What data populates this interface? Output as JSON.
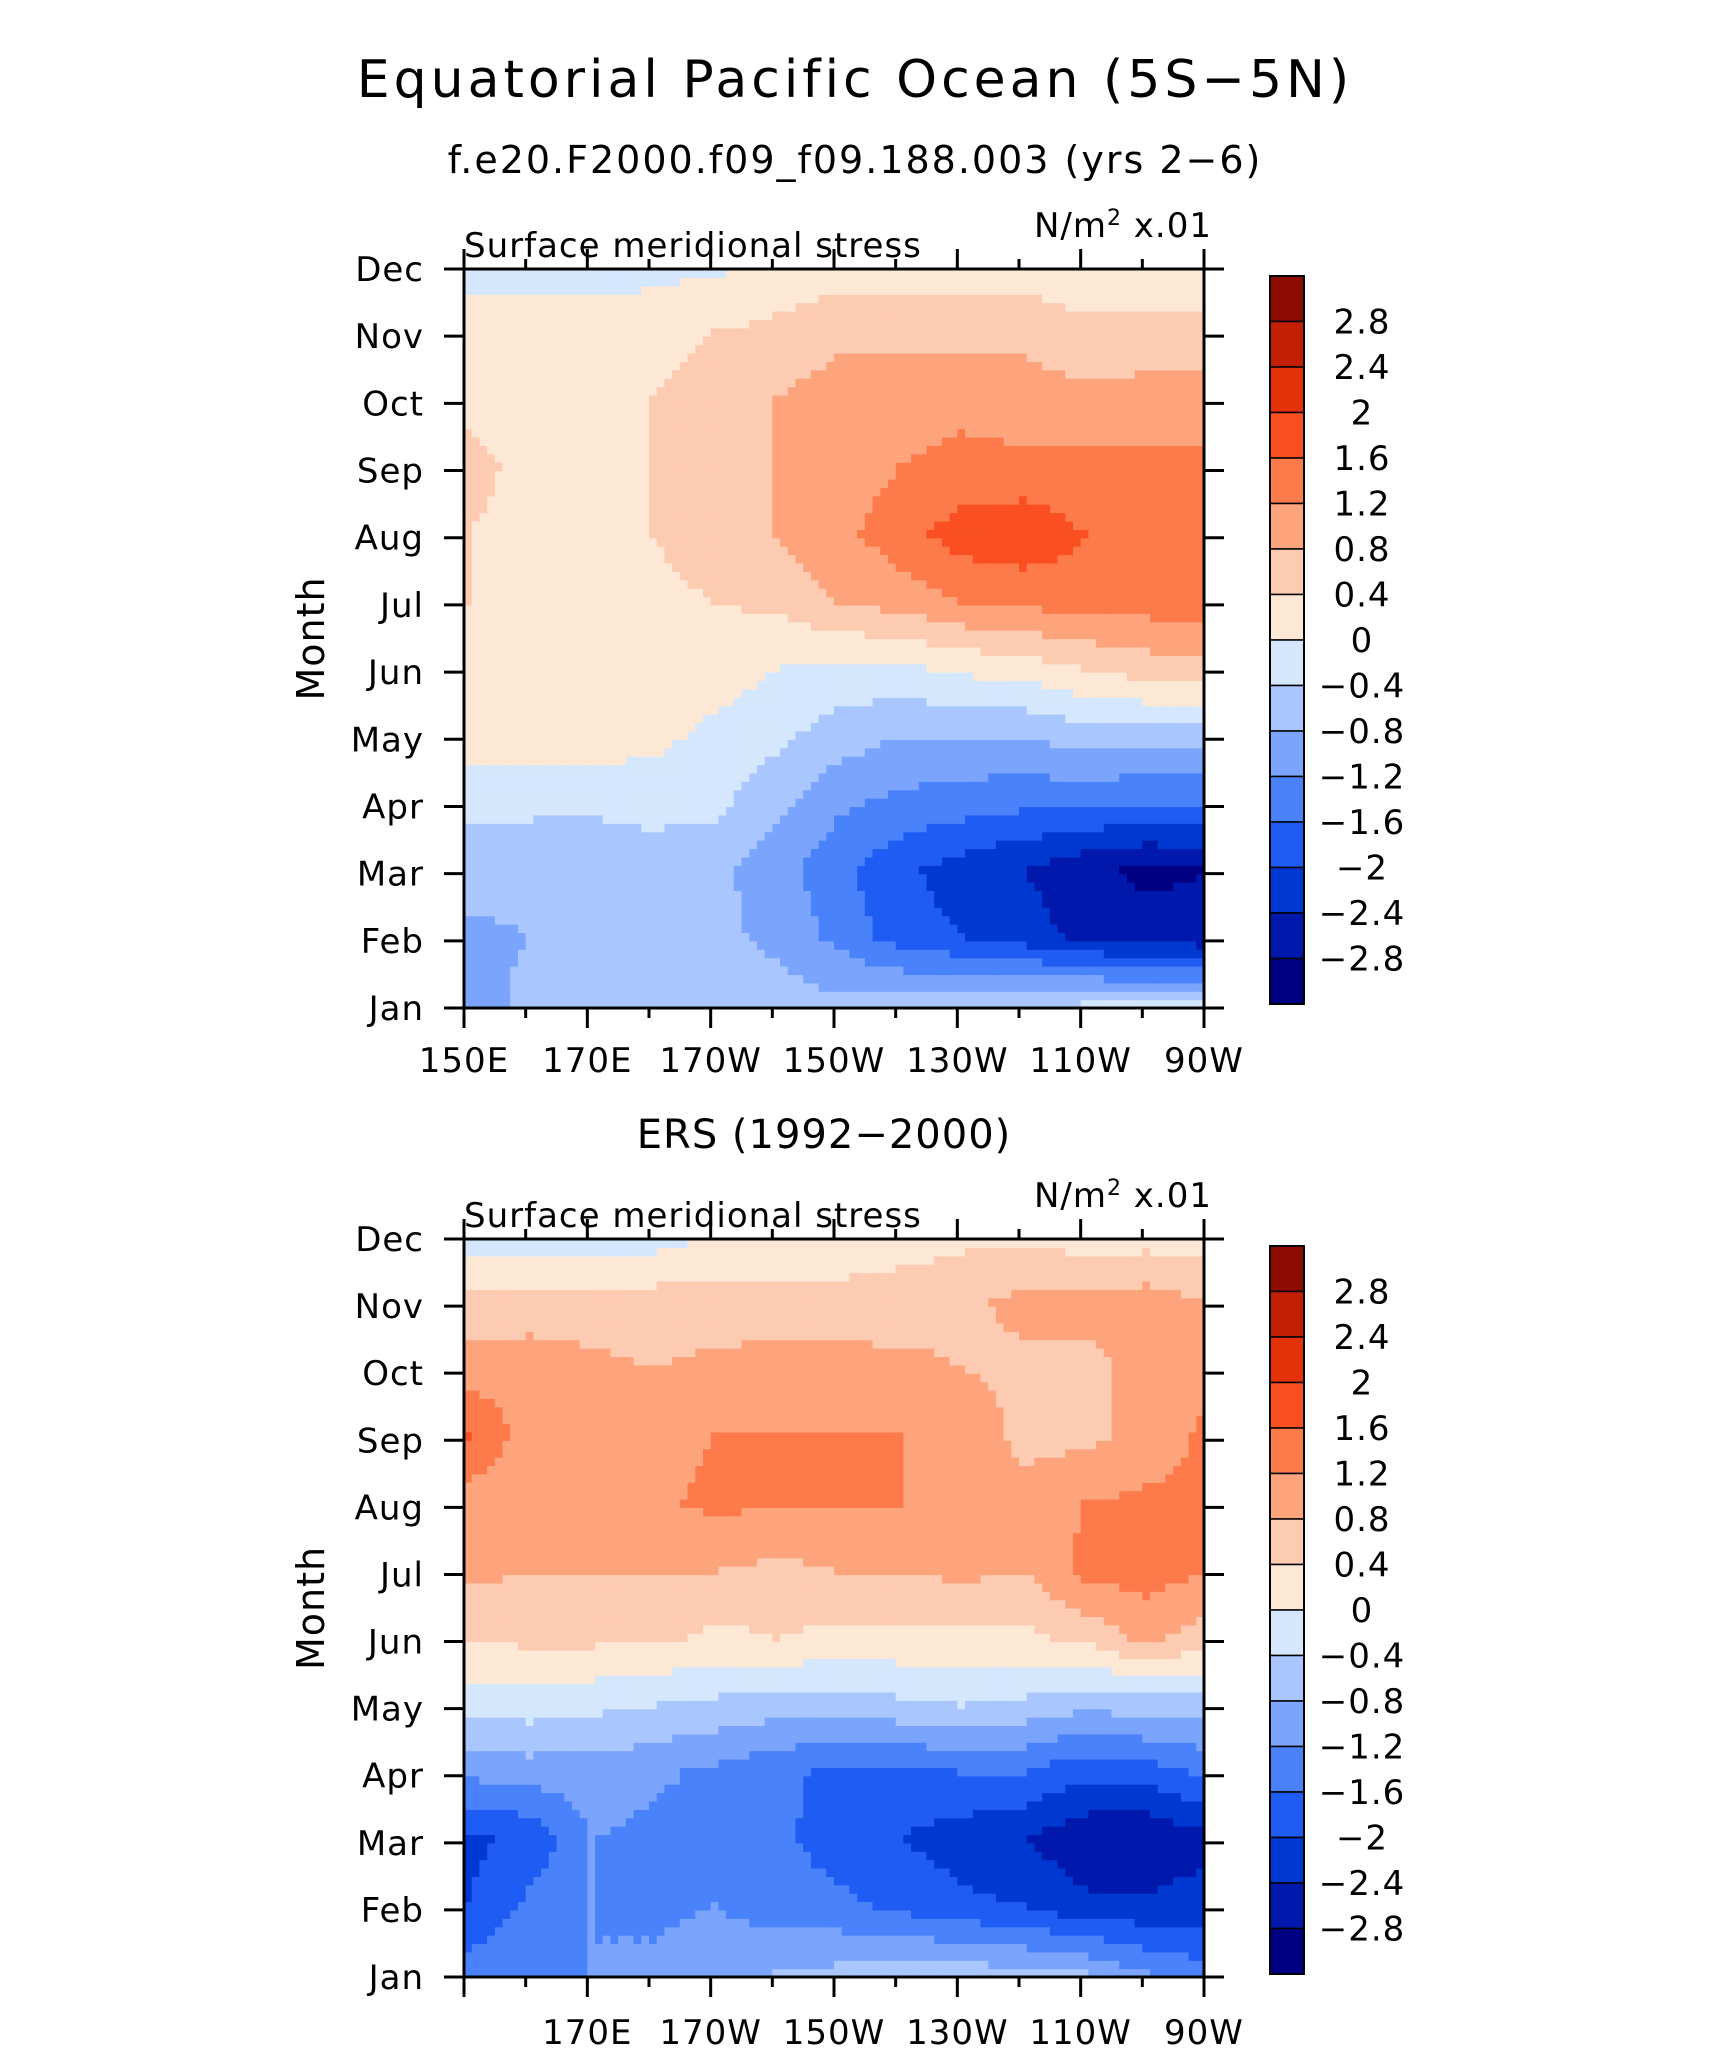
{
  "title": "Equatorial Pacific Ocean (5S−5N)",
  "subtitle": "f.e20.F2000.f09_f09.188.003 (yrs 2−6)",
  "colors": [
    "#000083",
    "#0019ac",
    "#0039d2",
    "#1f5cf4",
    "#4a82fb",
    "#7ba4fd",
    "#a9c6fe",
    "#d4e7fd",
    "#fde8d6",
    "#fdcbb1",
    "#fda47d",
    "#fd7a4b",
    "#fa4f20",
    "#e3320a",
    "#c21f05",
    "#8e0b01"
  ],
  "chart_data": [
    {
      "type": "heatmap",
      "title": "f.e20.F2000.f09_f09.188.003 (yrs 2−6)",
      "variable": "Surface meridional stress",
      "units_label": "N/m",
      "units_power": "2",
      "units_scale": "x.01",
      "ylabel": "Month",
      "months": [
        "Jan",
        "Feb",
        "Mar",
        "Apr",
        "May",
        "Jun",
        "Jul",
        "Aug",
        "Sep",
        "Oct",
        "Nov",
        "Dec"
      ],
      "x_ticks": [
        "150E",
        "170E",
        "170W",
        "150W",
        "130W",
        "110W",
        "90W"
      ],
      "x_range": [
        150,
        270
      ],
      "levels": [
        -2.8,
        -2.4,
        -2,
        -1.6,
        -1.2,
        -0.8,
        -0.4,
        0,
        0.4,
        0.8,
        1.2,
        1.6,
        2,
        2.4,
        2.8
      ],
      "x": [
        150,
        160,
        170,
        180,
        190,
        200,
        210,
        220,
        230,
        240,
        250,
        260,
        270
      ],
      "values": [
        [
          -1.0,
          -0.7,
          -0.6,
          -0.6,
          -0.6,
          -0.6,
          -0.7,
          -0.6,
          -0.5,
          -0.5,
          -0.4,
          -0.4,
          -0.4
        ],
        [
          -0.9,
          -0.8,
          -0.7,
          -0.7,
          -0.7,
          -0.9,
          -1.3,
          -1.8,
          -2.0,
          -2.2,
          -2.5,
          -2.6,
          -2.7
        ],
        [
          -0.6,
          -0.7,
          -0.8,
          -0.7,
          -0.7,
          -1.0,
          -1.5,
          -1.9,
          -2.2,
          -2.4,
          -2.7,
          -2.9,
          -2.8
        ],
        [
          -0.3,
          -0.3,
          -0.3,
          -0.2,
          -0.3,
          -0.7,
          -1.1,
          -1.3,
          -1.4,
          -1.5,
          -1.5,
          -1.6,
          -1.6
        ],
        [
          0.2,
          0.2,
          0.2,
          0.1,
          -0.1,
          -0.3,
          -0.6,
          -0.8,
          -0.8,
          -0.8,
          -0.6,
          -0.6,
          -0.6
        ],
        [
          0.3,
          0.3,
          0.3,
          0.3,
          0.2,
          0.0,
          -0.1,
          -0.1,
          0.1,
          0.2,
          0.4,
          0.6,
          0.7
        ],
        [
          0.4,
          0.3,
          0.3,
          0.3,
          0.4,
          0.5,
          0.8,
          1.0,
          1.2,
          1.3,
          1.4,
          1.4,
          1.5
        ],
        [
          0.4,
          0.3,
          0.3,
          0.4,
          0.6,
          0.8,
          1.1,
          1.4,
          1.8,
          1.9,
          1.6,
          1.4,
          1.4
        ],
        [
          0.5,
          0.3,
          0.3,
          0.4,
          0.6,
          0.8,
          1.0,
          1.2,
          1.3,
          1.3,
          1.3,
          1.3,
          1.3
        ],
        [
          0.3,
          0.3,
          0.3,
          0.4,
          0.6,
          0.8,
          1.0,
          1.0,
          1.1,
          1.0,
          0.9,
          1.0,
          1.0
        ],
        [
          0.3,
          0.3,
          0.2,
          0.2,
          0.4,
          0.5,
          0.7,
          0.7,
          0.7,
          0.7,
          0.5,
          0.5,
          0.5
        ],
        [
          -0.2,
          -0.2,
          -0.2,
          -0.1,
          -0.1,
          0.1,
          0.2,
          0.2,
          0.2,
          0.2,
          0.1,
          0.1,
          0.2
        ]
      ]
    },
    {
      "type": "heatmap",
      "title": "ERS (1992−2000)",
      "variable": "Surface meridional stress",
      "units_label": "N/m",
      "units_power": "2",
      "units_scale": "x.01",
      "ylabel": "Month",
      "months": [
        "Jan",
        "Feb",
        "Mar",
        "Apr",
        "May",
        "Jun",
        "Jul",
        "Aug",
        "Sep",
        "Oct",
        "Nov",
        "Dec"
      ],
      "x_ticks": [
        "170E",
        "170W",
        "150W",
        "130W",
        "110W",
        "90W"
      ],
      "x_range": [
        150,
        270
      ],
      "levels": [
        -2.8,
        -2.4,
        -2,
        -1.6,
        -1.2,
        -0.8,
        -0.4,
        0,
        0.4,
        0.8,
        1.2,
        1.6,
        2,
        2.4,
        2.8
      ],
      "x": [
        150,
        160,
        170,
        180,
        190,
        200,
        210,
        220,
        230,
        240,
        250,
        260,
        270
      ],
      "values": [
        [
          -1.4,
          -1.3,
          -1.2,
          -1.1,
          -0.9,
          -0.8,
          -0.7,
          -0.6,
          -0.6,
          -0.7,
          -0.8,
          -1.2,
          -1.5
        ],
        [
          -2.0,
          -1.5,
          -1.2,
          -1.3,
          -1.2,
          -1.4,
          -1.5,
          -1.7,
          -1.9,
          -2.0,
          -2.3,
          -2.3,
          -2.2
        ],
        [
          -2.1,
          -1.9,
          -1.2,
          -1.3,
          -1.5,
          -1.5,
          -1.8,
          -2.0,
          -2.2,
          -2.4,
          -2.7,
          -2.8,
          -2.5
        ],
        [
          -1.1,
          -1.0,
          -1.0,
          -1.1,
          -1.3,
          -1.5,
          -1.7,
          -1.7,
          -1.6,
          -1.6,
          -1.9,
          -1.8,
          -1.5
        ],
        [
          -0.2,
          -0.2,
          -0.3,
          -0.4,
          -0.5,
          -0.6,
          -0.6,
          -0.5,
          -0.4,
          -0.5,
          -0.7,
          -0.6,
          -0.6
        ],
        [
          0.4,
          0.5,
          0.5,
          0.5,
          0.3,
          0.4,
          0.3,
          0.3,
          0.3,
          0.3,
          0.5,
          0.9,
          0.6
        ],
        [
          0.9,
          0.8,
          0.8,
          0.8,
          0.8,
          0.7,
          0.8,
          0.8,
          0.9,
          0.8,
          1.3,
          1.4,
          1.2
        ],
        [
          1.0,
          1.0,
          0.9,
          1.1,
          1.3,
          1.2,
          1.2,
          1.2,
          1.1,
          0.9,
          1.2,
          1.3,
          1.3
        ],
        [
          1.6,
          1.0,
          1.0,
          1.0,
          1.2,
          1.2,
          1.2,
          1.2,
          1.1,
          0.7,
          0.7,
          0.9,
          1.3
        ],
        [
          1.0,
          1.1,
          0.9,
          0.8,
          0.9,
          1.0,
          1.0,
          0.9,
          0.8,
          0.7,
          0.7,
          0.9,
          1.1
        ],
        [
          0.5,
          0.5,
          0.6,
          0.6,
          0.6,
          0.5,
          0.5,
          0.6,
          0.7,
          0.9,
          0.9,
          1.0,
          0.8
        ],
        [
          -0.2,
          -0.3,
          -0.2,
          -0.2,
          0.0,
          0.1,
          0.2,
          0.2,
          0.3,
          0.3,
          0.2,
          0.2,
          0.2
        ]
      ]
    }
  ]
}
